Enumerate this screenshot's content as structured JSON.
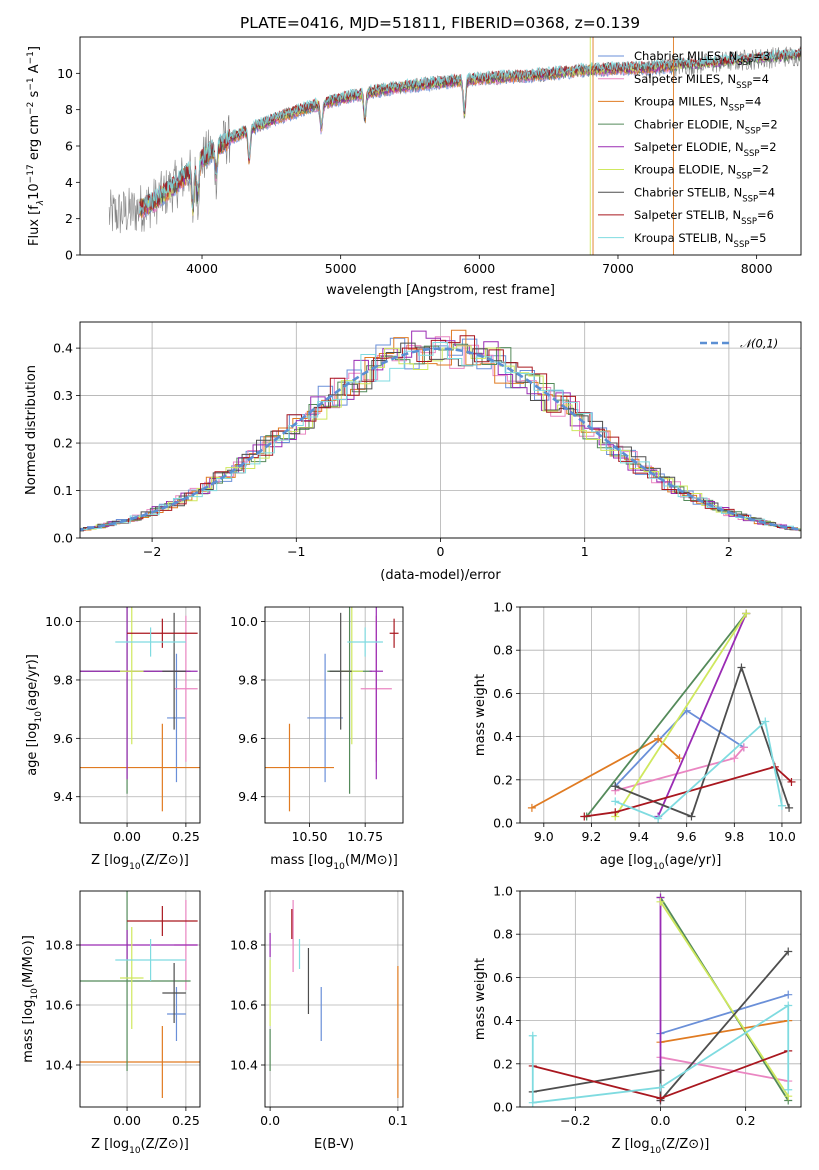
{
  "title": "PLATE=0416, MJD=51811, FIBERID=0368, z=0.139",
  "colors": {
    "Chabrier MILES": "#6a8fd8",
    "Salpeter MILES": "#ea86c2",
    "Kroupa MILES": "#e07b22",
    "Chabrier ELODIE": "#548a5a",
    "Salpeter ELODIE": "#9a2bb4",
    "Kroupa ELODIE": "#cfe85e",
    "Chabrier STELIB": "#4e4e4e",
    "Salpeter STELIB": "#a9171f",
    "Kroupa STELIB": "#7fdbe0",
    "data": "#808080",
    "gaussian": "#5b8fd3"
  },
  "chart_data": [
    {
      "type": "line",
      "id": "spectrum",
      "xlabel": "wavelength [Angstrom, rest frame]",
      "ylabel": "Flux [f_λ10^-17 erg cm^-2 s^-1 A^-1]",
      "xlim": [
        3120,
        8320
      ],
      "ylim": [
        0,
        12
      ],
      "xticks": [
        4000,
        5000,
        6000,
        7000,
        8000
      ],
      "yticks": [
        0,
        2,
        4,
        6,
        8,
        10
      ],
      "grid": false,
      "legend_position": "top-right",
      "legend": [
        {
          "model": "Chabrier MILES",
          "n": "3"
        },
        {
          "model": "Salpeter MILES",
          "n": "4"
        },
        {
          "model": "Kroupa MILES",
          "n": "4"
        },
        {
          "model": "Chabrier ELODIE",
          "n": "2"
        },
        {
          "model": "Salpeter ELODIE",
          "n": "2"
        },
        {
          "model": "Kroupa ELODIE",
          "n": "2"
        },
        {
          "model": "Chabrier STELIB",
          "n": "4"
        },
        {
          "model": "Salpeter STELIB",
          "n": "6"
        },
        {
          "model": "Kroupa STELIB",
          "n": "5"
        }
      ],
      "continuum": {
        "x": [
          3330,
          3500,
          3650,
          3800,
          3950,
          4050,
          4200,
          4400,
          4600,
          4800,
          5000,
          5300,
          5600,
          6000,
          6400,
          6800,
          7200,
          7600,
          8000,
          8320
        ],
        "y": [
          2.2,
          2.4,
          2.9,
          3.8,
          4.9,
          5.6,
          6.4,
          7.1,
          7.7,
          8.2,
          8.6,
          9.1,
          9.4,
          9.7,
          9.9,
          10.2,
          10.3,
          10.5,
          10.8,
          11.0
        ]
      },
      "dips": [
        [
          3934,
          2.5
        ],
        [
          3969,
          2.0
        ],
        [
          4102,
          1.5
        ],
        [
          4340,
          1.8
        ],
        [
          4861,
          1.5
        ],
        [
          5175,
          1.5
        ],
        [
          5893,
          2.0
        ]
      ]
    },
    {
      "type": "histogram",
      "id": "residuals",
      "xlabel": "(data-model)/error",
      "ylabel": "Normed distribution",
      "xlim": [
        -2.5,
        2.5
      ],
      "ylim": [
        0,
        0.455
      ],
      "xticks": [
        -2,
        -1,
        0,
        1,
        2
      ],
      "yticks": [
        0.0,
        0.1,
        0.2,
        0.3,
        0.4
      ],
      "grid": true,
      "legend": "𝒩(0,1)",
      "legend_position": "top-right",
      "bin_width": 0.1
    },
    {
      "type": "scatter",
      "id": "age-Z",
      "xlabel": "Z [log10(Z/Z⊙)]",
      "ylabel": "age [log10(age/yr)]",
      "xlim": [
        -0.2,
        0.31
      ],
      "ylim": [
        9.31,
        10.05
      ],
      "xticks": [
        0.0,
        0.25
      ],
      "yticks": [
        9.4,
        9.6,
        9.8,
        10.0
      ],
      "grid": true,
      "points": [
        {
          "model": "Chabrier MILES",
          "x": 0.21,
          "xerr": 0.04,
          "y": 9.67,
          "yerr": 0.22
        },
        {
          "model": "Salpeter MILES",
          "x": 0.25,
          "xerr": 0.05,
          "y": 9.77,
          "yerr": 0.25
        },
        {
          "model": "Kroupa MILES",
          "x": 0.15,
          "xerr": 0.5,
          "y": 9.5,
          "yerr": 0.15
        },
        {
          "model": "Chabrier ELODIE",
          "x": 0.0,
          "xerr": 0.27,
          "y": 9.83,
          "yerr": 0.42
        },
        {
          "model": "Salpeter ELODIE",
          "x": 0.0,
          "xerr": 0.3,
          "y": 9.83,
          "yerr": 0.37
        },
        {
          "model": "Kroupa ELODIE",
          "x": 0.02,
          "xerr": 0.05,
          "y": 9.83,
          "yerr": 0.25
        },
        {
          "model": "Chabrier STELIB",
          "x": 0.2,
          "xerr": 0.05,
          "y": 9.83,
          "yerr": 0.2
        },
        {
          "model": "Salpeter STELIB",
          "x": 0.15,
          "xerr": 0.15,
          "y": 9.96,
          "yerr": 0.05
        },
        {
          "model": "Kroupa STELIB",
          "x": 0.1,
          "xerr": 0.15,
          "y": 9.93,
          "yerr": 0.05
        }
      ]
    },
    {
      "type": "scatter",
      "id": "age-mass",
      "xlabel": "mass [log10(M/M⊙)]",
      "ylabel": "",
      "xlim": [
        10.3,
        10.92
      ],
      "ylim": [
        9.31,
        10.05
      ],
      "xticks": [
        10.5,
        10.75
      ],
      "yticks": [
        9.4,
        9.6,
        9.8,
        10.0
      ],
      "grid": true,
      "points": [
        {
          "model": "Chabrier MILES",
          "x": 10.57,
          "xerr": 0.08,
          "y": 9.67,
          "yerr": 0.22
        },
        {
          "model": "Salpeter MILES",
          "x": 10.8,
          "xerr": 0.07,
          "y": 9.77,
          "yerr": 0.25
        },
        {
          "model": "Kroupa MILES",
          "x": 10.41,
          "xerr": 0.2,
          "y": 9.5,
          "yerr": 0.15
        },
        {
          "model": "Chabrier ELODIE",
          "x": 10.68,
          "xerr": 0.1,
          "y": 9.83,
          "yerr": 0.42
        },
        {
          "model": "Salpeter ELODIE",
          "x": 10.8,
          "xerr": 0.03,
          "y": 9.83,
          "yerr": 0.37
        },
        {
          "model": "Kroupa ELODIE",
          "x": 10.69,
          "xerr": 0.05,
          "y": 9.83,
          "yerr": 0.25
        },
        {
          "model": "Chabrier STELIB",
          "x": 10.64,
          "xerr": 0.05,
          "y": 9.83,
          "yerr": 0.2
        },
        {
          "model": "Salpeter STELIB",
          "x": 10.88,
          "xerr": 0.02,
          "y": 9.96,
          "yerr": 0.05
        },
        {
          "model": "Kroupa STELIB",
          "x": 10.75,
          "xerr": 0.08,
          "y": 9.93,
          "yerr": 0.05
        }
      ]
    },
    {
      "type": "line",
      "id": "weight-age",
      "xlabel": "age [log10(age/yr)]",
      "ylabel": "mass weight",
      "xlim": [
        8.9,
        10.08
      ],
      "ylim": [
        0,
        1.0
      ],
      "xticks": [
        9.0,
        9.2,
        9.4,
        9.6,
        9.8,
        10.0
      ],
      "yticks": [
        0.0,
        0.2,
        0.4,
        0.6,
        0.8,
        1.0
      ],
      "grid": true,
      "series": [
        {
          "model": "Chabrier MILES",
          "x": [
            9.3,
            9.6,
            9.84
          ],
          "y": [
            0.17,
            0.52,
            0.35
          ]
        },
        {
          "model": "Salpeter MILES",
          "x": [
            9.3,
            9.8,
            9.84
          ],
          "y": [
            0.15,
            0.3,
            0.35
          ]
        },
        {
          "model": "Kroupa MILES",
          "x": [
            8.95,
            9.48,
            9.57
          ],
          "y": [
            0.07,
            0.39,
            0.3
          ]
        },
        {
          "model": "Chabrier ELODIE",
          "x": [
            9.18,
            9.85
          ],
          "y": [
            0.03,
            0.97
          ]
        },
        {
          "model": "Salpeter ELODIE",
          "x": [
            9.48,
            9.85
          ],
          "y": [
            0.03,
            0.97
          ]
        },
        {
          "model": "Kroupa ELODIE",
          "x": [
            9.3,
            9.85
          ],
          "y": [
            0.03,
            0.97
          ]
        },
        {
          "model": "Chabrier STELIB",
          "x": [
            9.3,
            9.62,
            9.83,
            10.03
          ],
          "y": [
            0.17,
            0.03,
            0.72,
            0.07
          ]
        },
        {
          "model": "Salpeter STELIB",
          "x": [
            9.17,
            9.3,
            9.97,
            10.04
          ],
          "y": [
            0.03,
            0.05,
            0.26,
            0.19
          ]
        },
        {
          "model": "Kroupa STELIB",
          "x": [
            9.3,
            9.48,
            9.93,
            10.0
          ],
          "y": [
            0.1,
            0.02,
            0.47,
            0.08
          ]
        }
      ]
    },
    {
      "type": "scatter",
      "id": "mass-Z",
      "xlabel": "Z [log10(Z/Z⊙)]",
      "ylabel": "mass [log10(M/M⊙)]",
      "xlim": [
        -0.2,
        0.31
      ],
      "ylim": [
        10.26,
        10.98
      ],
      "xticks": [
        0.0,
        0.25
      ],
      "yticks": [
        10.4,
        10.6,
        10.8
      ],
      "grid": true,
      "points": [
        {
          "model": "Chabrier MILES",
          "x": 0.21,
          "xerr": 0.04,
          "y": 10.57,
          "yerr": 0.09
        },
        {
          "model": "Salpeter MILES",
          "x": 0.25,
          "xerr": 0.05,
          "y": 10.8,
          "yerr": 0.15
        },
        {
          "model": "Kroupa MILES",
          "x": 0.15,
          "xerr": 0.5,
          "y": 10.41,
          "yerr": 0.12
        },
        {
          "model": "Chabrier ELODIE",
          "x": 0.0,
          "xerr": 0.27,
          "y": 10.68,
          "yerr": 0.3
        },
        {
          "model": "Salpeter ELODIE",
          "x": 0.0,
          "xerr": 0.3,
          "y": 10.8,
          "yerr": 0.05
        },
        {
          "model": "Kroupa ELODIE",
          "x": 0.02,
          "xerr": 0.05,
          "y": 10.69,
          "yerr": 0.17
        },
        {
          "model": "Chabrier STELIB",
          "x": 0.2,
          "xerr": 0.05,
          "y": 10.64,
          "yerr": 0.1
        },
        {
          "model": "Salpeter STELIB",
          "x": 0.15,
          "xerr": 0.15,
          "y": 10.88,
          "yerr": 0.05
        },
        {
          "model": "Kroupa STELIB",
          "x": 0.1,
          "xerr": 0.15,
          "y": 10.75,
          "yerr": 0.07
        }
      ]
    },
    {
      "type": "scatter",
      "id": "mass-EBV",
      "xlabel": "E(B-V)",
      "ylabel": "",
      "xlim": [
        -0.004,
        0.104
      ],
      "ylim": [
        10.26,
        10.98
      ],
      "xticks": [
        0.0,
        0.1
      ],
      "yticks": [
        10.4,
        10.6,
        10.8
      ],
      "grid": true,
      "points": [
        {
          "model": "Chabrier MILES",
          "x": 0.04,
          "xerr": 0,
          "y": 10.57,
          "yerr": 0.09
        },
        {
          "model": "Salpeter MILES",
          "x": 0.018,
          "xerr": 0,
          "y": 10.83,
          "yerr": 0.12
        },
        {
          "model": "Kroupa MILES",
          "x": 0.1,
          "xerr": 0,
          "y": 10.51,
          "yerr": 0.22
        },
        {
          "model": "Chabrier ELODIE",
          "x": 0.0,
          "xerr": 0,
          "y": 10.45,
          "yerr": 0.07
        },
        {
          "model": "Salpeter ELODIE",
          "x": 0.0,
          "xerr": 0,
          "y": 10.8,
          "yerr": 0.04
        },
        {
          "model": "Kroupa ELODIE",
          "x": 0.0,
          "xerr": 0,
          "y": 10.64,
          "yerr": 0.11
        },
        {
          "model": "Chabrier STELIB",
          "x": 0.03,
          "xerr": 0,
          "y": 10.68,
          "yerr": 0.11
        },
        {
          "model": "Salpeter STELIB",
          "x": 0.017,
          "xerr": 0,
          "y": 10.87,
          "yerr": 0.05
        },
        {
          "model": "Kroupa STELIB",
          "x": 0.023,
          "xerr": 0,
          "y": 10.77,
          "yerr": 0.05
        }
      ]
    },
    {
      "type": "line",
      "id": "weight-Z",
      "xlabel": "Z [log10(Z/Z⊙)]",
      "ylabel": "mass weight",
      "xlim": [
        -0.33,
        0.33
      ],
      "ylim": [
        0,
        1.0
      ],
      "xticks": [
        -0.2,
        0.0,
        0.2
      ],
      "yticks": [
        0.0,
        0.2,
        0.4,
        0.6,
        0.8,
        1.0
      ],
      "grid": true,
      "series": [
        {
          "model": "Chabrier MILES",
          "x": [
            0.0,
            0.3
          ],
          "y": [
            0.34,
            0.52
          ]
        },
        {
          "model": "Salpeter MILES",
          "x": [
            0.0,
            0.3
          ],
          "y": [
            0.23,
            0.12
          ]
        },
        {
          "model": "Kroupa MILES",
          "x": [
            0.0,
            0.3
          ],
          "y": [
            0.3,
            0.4
          ]
        },
        {
          "model": "Chabrier ELODIE",
          "x": [
            0.0,
            0.3
          ],
          "y": [
            0.97,
            0.03
          ]
        },
        {
          "model": "Salpeter ELODIE",
          "x": [
            0.0,
            0.0
          ],
          "y": [
            0.97,
            0.03
          ]
        },
        {
          "model": "Kroupa ELODIE",
          "x": [
            0.0,
            0.3
          ],
          "y": [
            0.95,
            0.05
          ]
        },
        {
          "model": "Chabrier STELIB",
          "x": [
            -0.3,
            0.0,
            0.0,
            0.3
          ],
          "y": [
            0.07,
            0.17,
            0.03,
            0.72
          ]
        },
        {
          "model": "Salpeter STELIB",
          "x": [
            -0.3,
            0.0,
            0.3
          ],
          "y": [
            0.19,
            0.04,
            0.26
          ]
        },
        {
          "model": "Kroupa STELIB",
          "x": [
            -0.3,
            -0.3,
            0.0,
            0.3,
            0.3
          ],
          "y": [
            0.33,
            0.02,
            0.09,
            0.47,
            0.08
          ]
        }
      ]
    }
  ]
}
